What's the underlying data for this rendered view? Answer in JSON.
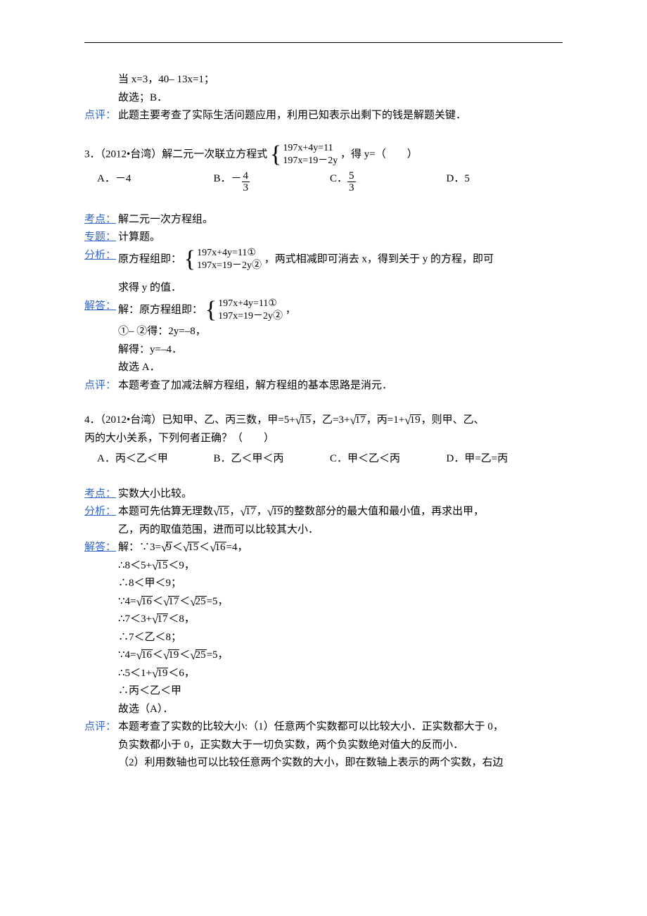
{
  "doc": {
    "text_color": "#000000",
    "label_color": "#3366cc",
    "font_size_pt": 11,
    "line_height": 1.7,
    "background": "#ffffff"
  },
  "q2_tail": {
    "line1_a": "当 x=3，40– 13x=1；",
    "line1_b": "故选；B．",
    "review_label": "点评：",
    "review_text": "此题主要考查了实际生活问题应用，利用已知表示出剩下的钱是解题关键．"
  },
  "q3": {
    "stem_prefix": "3．（2012•台湾）解二元一次联立方程式",
    "sys_line1": "197x+4y=11",
    "sys_line2": "197x=19－2y",
    "stem_suffix": "，得 y=（　　）",
    "options": {
      "A": "－4",
      "B_prefix": "－",
      "B_num": "4",
      "B_den": "3",
      "C_num": "5",
      "C_den": "3",
      "D": "5"
    },
    "kaodian_label": "考点：",
    "kaodian_text": "解二元一次方程组。",
    "zhuanti_label": "专题：",
    "zhuanti_text": "计算题。",
    "fenxi_label": "分析：",
    "fenxi_prefix": "原方程组即：",
    "fenxi_sys1": "197x+4y=11①",
    "fenxi_sys2": "197x=19－2y②",
    "fenxi_mid": "，两式相减即可消去 x，得到关于 y 的方程，即可",
    "fenxi_tail": "求得 y 的值．",
    "jieda_label": "解答：",
    "jieda_prefix": "解：原方程组即：",
    "jieda_sys1": "197x+4y=11①",
    "jieda_sys2": "197x=19－2y②",
    "jieda_suffix": "，",
    "jieda_l2": "①– ②得：2y=–8，",
    "jieda_l3": "解得：y=–4．",
    "jieda_l4": "故选 A．",
    "dianping_label": "点评：",
    "dianping_text": "本题考查了加减法解方程组，解方程组的基本思路是消元．"
  },
  "q4": {
    "stem_a": "4．（2012•台湾）已知甲、乙、丙三数，甲=5+",
    "r15": "15",
    "stem_b": "，乙=3+",
    "r17": "17",
    "stem_c": "，丙=1+",
    "r19": "19",
    "stem_d": "，则甲、乙、",
    "stem_e": "丙的大小关系，下列何者正确？（　　）",
    "options": {
      "A": "丙＜乙＜甲",
      "B": "乙＜甲＜丙",
      "C": "甲＜乙＜丙",
      "D": "甲=乙=丙"
    },
    "kaodian_label": "考点：",
    "kaodian_text": "实数大小比较。",
    "fenxi_label": "分析：",
    "fenxi_a": "本题可先估算无理数",
    "fenxi_b": "，",
    "fenxi_c": "，",
    "fenxi_d": "的整数部分的最大值和最小值，再求出甲，",
    "fenxi_e": "乙，丙的取值范围，进而可以比较其大小．",
    "jieda_label": "解答：",
    "jieda_l1_a": "解：∵3=",
    "r9": "9",
    "lt": "＜",
    "r16": "16",
    "eq4": "=4，",
    "jieda_l2": "∴8＜5+",
    "jieda_l2b": "＜9，",
    "jieda_l3": "∴8＜甲＜9；",
    "jieda_l4_a": "∵4=",
    "r25": "25",
    "eq5": "=5，",
    "jieda_l5": "∴7＜3+",
    "jieda_l5b": "＜8，",
    "jieda_l6": "∴7＜乙＜8；",
    "jieda_l7_a": "∵4=",
    "jieda_l8": "∴5＜1+",
    "jieda_l8b": "＜6，",
    "jieda_l9": "∴丙＜乙＜甲",
    "jieda_l10": " 故选（A）．",
    "dianping_label": "点评：",
    "dianping_a": "本题考查了实数的比较大小:（1）任意两个实数都可以比较大小．正实数都大于 0，",
    "dianping_b": "负实数都小于 0，正实数大于一切负实数，两个负实数绝对值大的反而小．",
    "dianping_c": "（2）利用数轴也可以比较任意两个实数的大小，即在数轴上表示的两个实数，右边"
  }
}
